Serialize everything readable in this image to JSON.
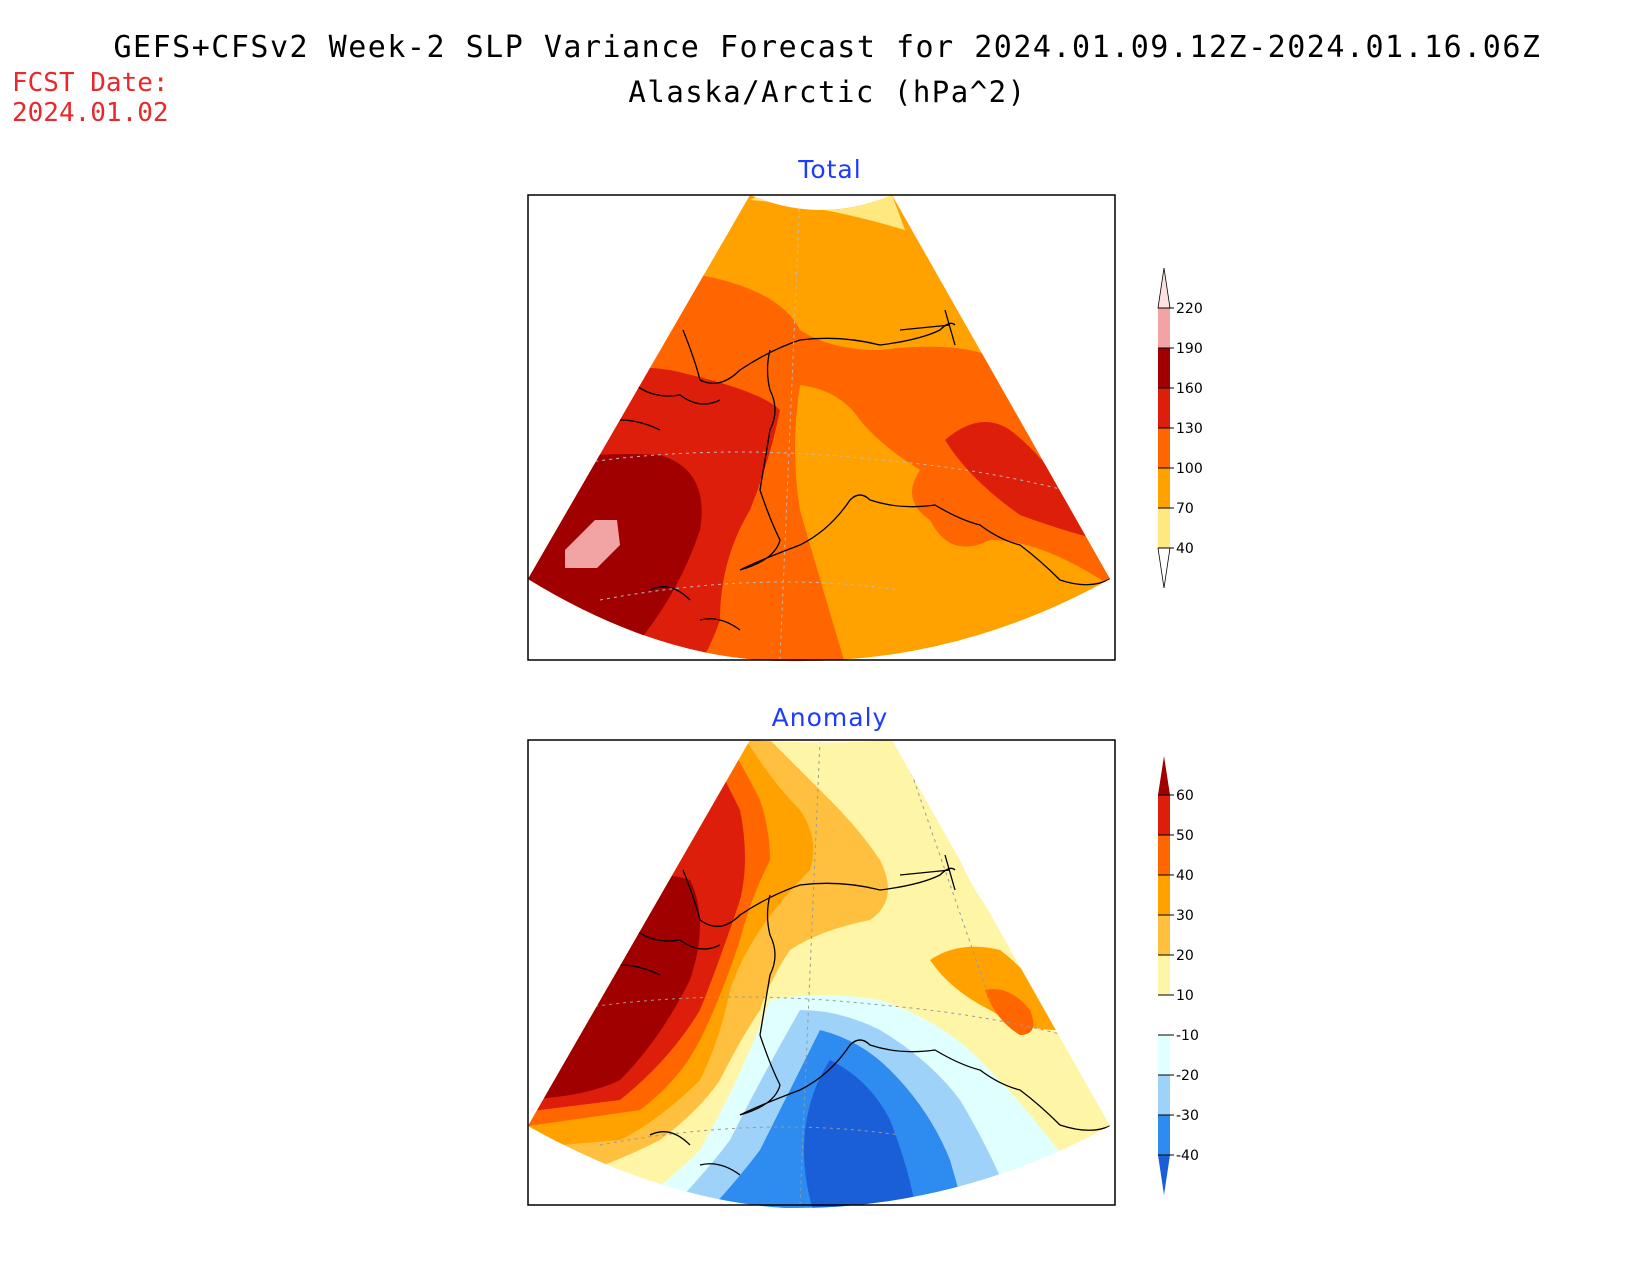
{
  "title": "GEFS+CFSv2 Week-2 SLP Variance Forecast for 2024.01.09.12Z-2024.01.16.06Z",
  "subtitle": "Alaska/Arctic (hPa^2)",
  "fcst_label": "FCST Date:",
  "fcst_date": "2024.01.02",
  "panels": {
    "total": {
      "title": "Total",
      "legend": {
        "labels": [
          "220",
          "190",
          "160",
          "130",
          "100",
          "70",
          "40"
        ],
        "colors": [
          "#fde0e0",
          "#f2a3a3",
          "#a00000",
          "#dc1e0a",
          "#ff6600",
          "#ffa200",
          "#ffe87f"
        ]
      }
    },
    "anomaly": {
      "title": "Anomaly",
      "legend": {
        "labels": [
          "60",
          "50",
          "40",
          "30",
          "20",
          "10",
          "-10",
          "-20",
          "-30",
          "-40"
        ],
        "colors": [
          "#a00000",
          "#dc1e0a",
          "#ff6600",
          "#ffa200",
          "#ffc040",
          "#fff5a6",
          "#ffffff",
          "#e0ffff",
          "#9fd2f8",
          "#2e8bf0",
          "#1a5fd8"
        ]
      }
    }
  }
}
